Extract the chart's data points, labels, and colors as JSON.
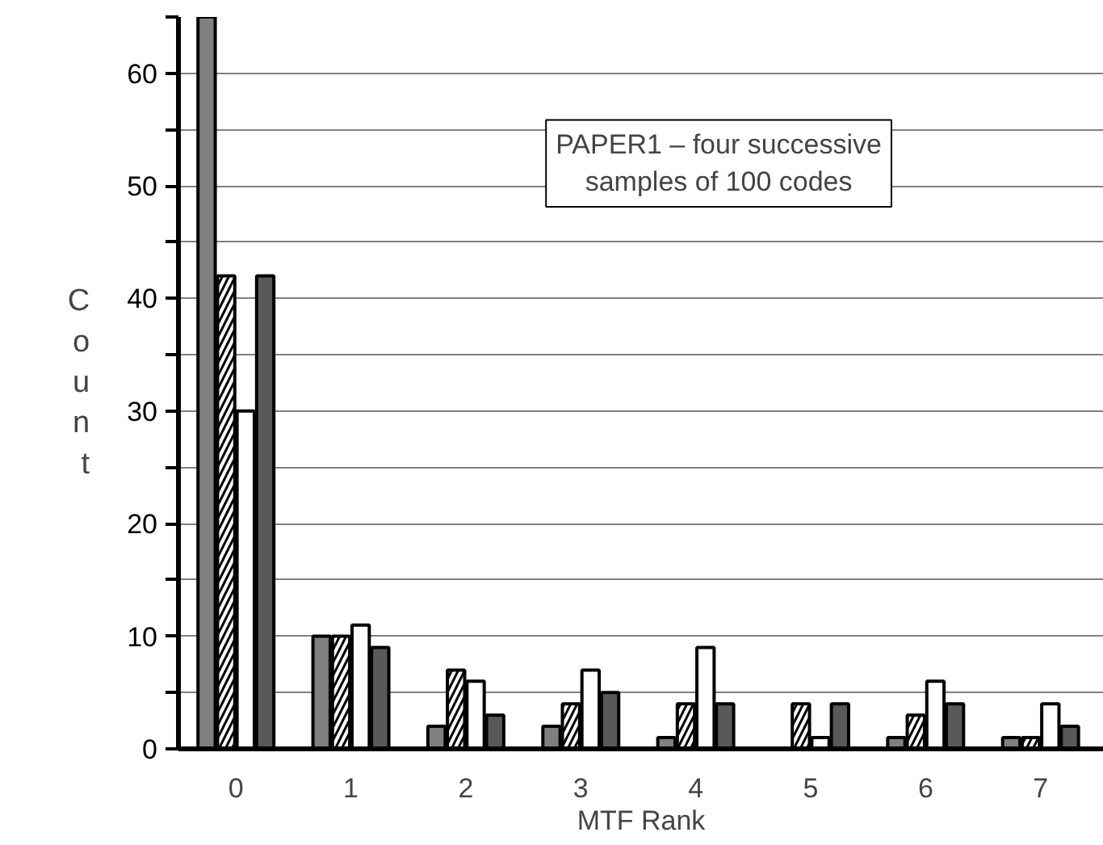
{
  "chart_data": {
    "type": "bar",
    "title": "PAPER1 – four successive\nsamples of 100 codes",
    "xlabel": "MTF Rank",
    "ylabel": "Count",
    "categories": [
      "0",
      "1",
      "2",
      "3",
      "4",
      "5",
      "6",
      "7"
    ],
    "series": [
      {
        "color": "#808080",
        "values": [
          65,
          10,
          2,
          2,
          1,
          null,
          1,
          1
        ]
      },
      {
        "color": "#ffffff",
        "values": [
          42,
          10,
          7,
          4,
          4,
          4,
          3,
          1
        ]
      },
      {
        "color": "#ffffff",
        "values": [
          30,
          11,
          6,
          7,
          9,
          1,
          6,
          4
        ]
      },
      {
        "color": "#595959",
        "values": [
          42,
          9,
          3,
          5,
          4,
          4,
          4,
          2
        ]
      }
    ],
    "ylim": [
      0,
      65
    ],
    "yticks": [
      0,
      {
        "value": 5,
        "label": null
      },
      10,
      {
        "value": 15,
        "label": null
      },
      20,
      {
        "value": 25,
        "label": null
      },
      30,
      {
        "value": 35,
        "label": null
      },
      40,
      {
        "value": 45,
        "label": null
      },
      50,
      {
        "value": 55,
        "label": null
      },
      60,
      {
        "value": 65,
        "label": null
      }
    ],
    "grid": "y"
  }
}
